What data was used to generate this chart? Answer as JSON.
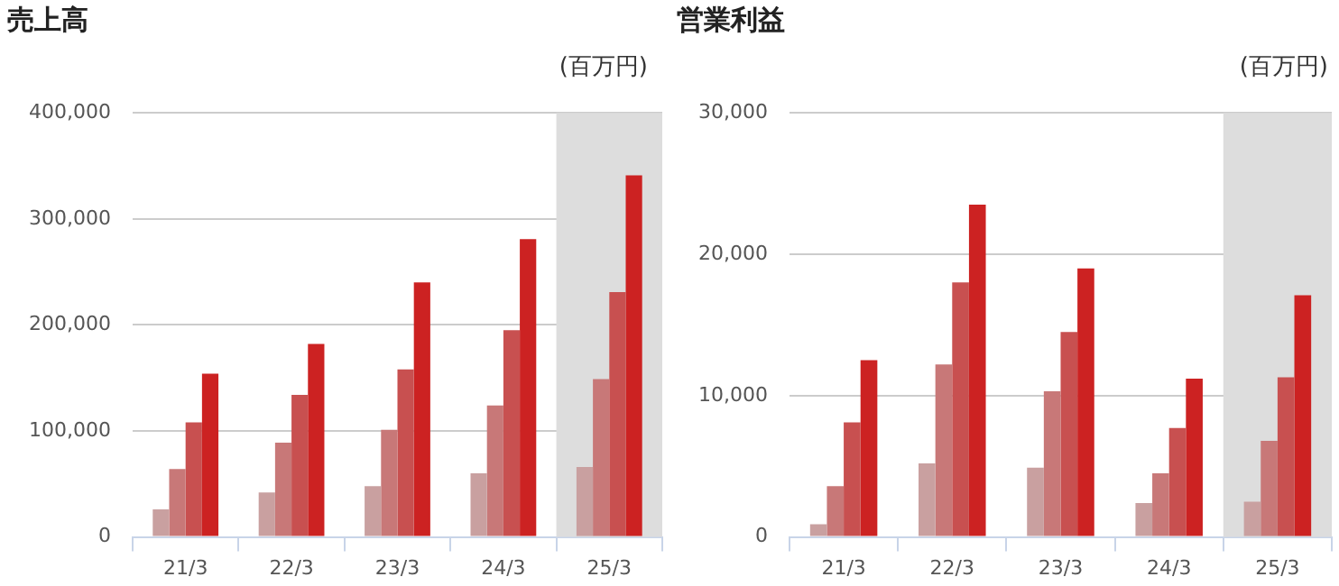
{
  "chart_data": [
    {
      "type": "bar",
      "title": "売上高",
      "ylabel": "(百万円)",
      "categories": [
        "21/3",
        "22/3",
        "23/3",
        "24/3",
        "25/3"
      ],
      "series": [
        {
          "color": "#c9a0a0",
          "values": [
            26000,
            42000,
            48000,
            60000,
            66000
          ]
        },
        {
          "color": "#c87878",
          "values": [
            64000,
            89000,
            101000,
            124000,
            149000
          ]
        },
        {
          "color": "#c85050",
          "values": [
            108000,
            134000,
            158000,
            195000,
            231000
          ]
        },
        {
          "color": "#cc2222",
          "values": [
            154000,
            182000,
            240000,
            281000,
            341000
          ]
        }
      ],
      "ylim": [
        0,
        400000
      ],
      "yticks": [
        {
          "value": 0,
          "label": "0"
        },
        {
          "value": 100000,
          "label": "100,000"
        },
        {
          "value": 200000,
          "label": "200,000"
        },
        {
          "value": 300000,
          "label": "300,000"
        },
        {
          "value": 400000,
          "label": "400,000"
        }
      ],
      "bands": [
        {
          "axis": "x",
          "from": "25/3",
          "to": "25/3",
          "color": "#dddddd"
        }
      ],
      "grid": "y",
      "legend": false
    },
    {
      "type": "bar",
      "title": "営業利益",
      "ylabel": "(百万円)",
      "categories": [
        "21/3",
        "22/3",
        "23/3",
        "24/3",
        "25/3"
      ],
      "series": [
        {
          "color": "#c9a0a0",
          "values": [
            900,
            5200,
            4900,
            2400,
            2500
          ]
        },
        {
          "color": "#c87878",
          "values": [
            3600,
            12200,
            10300,
            4500,
            6800
          ]
        },
        {
          "color": "#c85050",
          "values": [
            8100,
            18000,
            14500,
            7700,
            11300
          ]
        },
        {
          "color": "#cc2222",
          "values": [
            12500,
            23500,
            19000,
            11200,
            17100
          ]
        }
      ],
      "ylim": [
        0,
        30000
      ],
      "yticks": [
        {
          "value": 0,
          "label": "0"
        },
        {
          "value": 10000,
          "label": "10,000"
        },
        {
          "value": 20000,
          "label": "20,000"
        },
        {
          "value": 30000,
          "label": "30,000"
        }
      ],
      "bands": [
        {
          "axis": "x",
          "from": "25/3",
          "to": "25/3",
          "color": "#dddddd"
        }
      ],
      "grid": "y",
      "legend": false
    }
  ]
}
